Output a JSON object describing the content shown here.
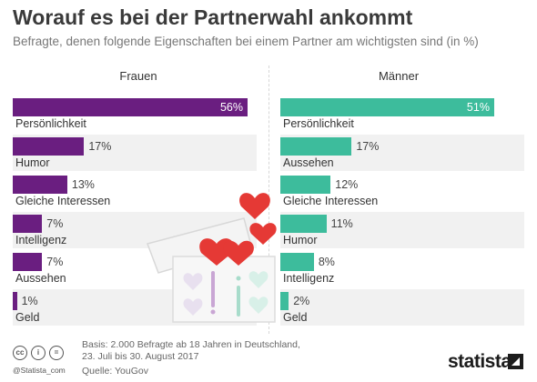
{
  "header": {
    "title": "Worauf es bei der Partnerwahl ankommt",
    "subtitle": "Befragte, denen folgende Eigenschaften bei einem Partner am wichtigsten sind (in %)"
  },
  "chart_data": {
    "type": "bar",
    "orientation": "horizontal",
    "panels": [
      {
        "name": "Frauen",
        "color": "#6a1e80",
        "categories": [
          "Persönlichkeit",
          "Humor",
          "Gleiche Interessen",
          "Intelligenz",
          "Aussehen",
          "Geld"
        ],
        "values": [
          56,
          17,
          13,
          7,
          7,
          1
        ],
        "labels": [
          "56%",
          "17%",
          "13%",
          "7%",
          "7%",
          "1%"
        ]
      },
      {
        "name": "Männer",
        "color": "#3dbc9c",
        "categories": [
          "Persönlichkeit",
          "Aussehen",
          "Gleiche Interessen",
          "Humor",
          "Intelligenz",
          "Geld"
        ],
        "values": [
          51,
          17,
          12,
          11,
          8,
          2
        ],
        "labels": [
          "51%",
          "17%",
          "12%",
          "11%",
          "8%",
          "2%"
        ]
      }
    ],
    "xlim": [
      0,
      56
    ],
    "grid": false,
    "legend": "none"
  },
  "footer": {
    "source_note_line1": "Basis: 2.000 Befragte ab 18 Jahren in Deutschland,",
    "source_note_line2": "23. Juli bis 30. August 2017",
    "source": "Quelle: YouGov",
    "credit": "@Statista_com",
    "cc_icons": [
      "cc",
      "i",
      "="
    ],
    "logo": "statista"
  },
  "icons": [
    "heart-icon",
    "gift-box-icon",
    "creative-commons-icon",
    "statista-logo-icon"
  ]
}
